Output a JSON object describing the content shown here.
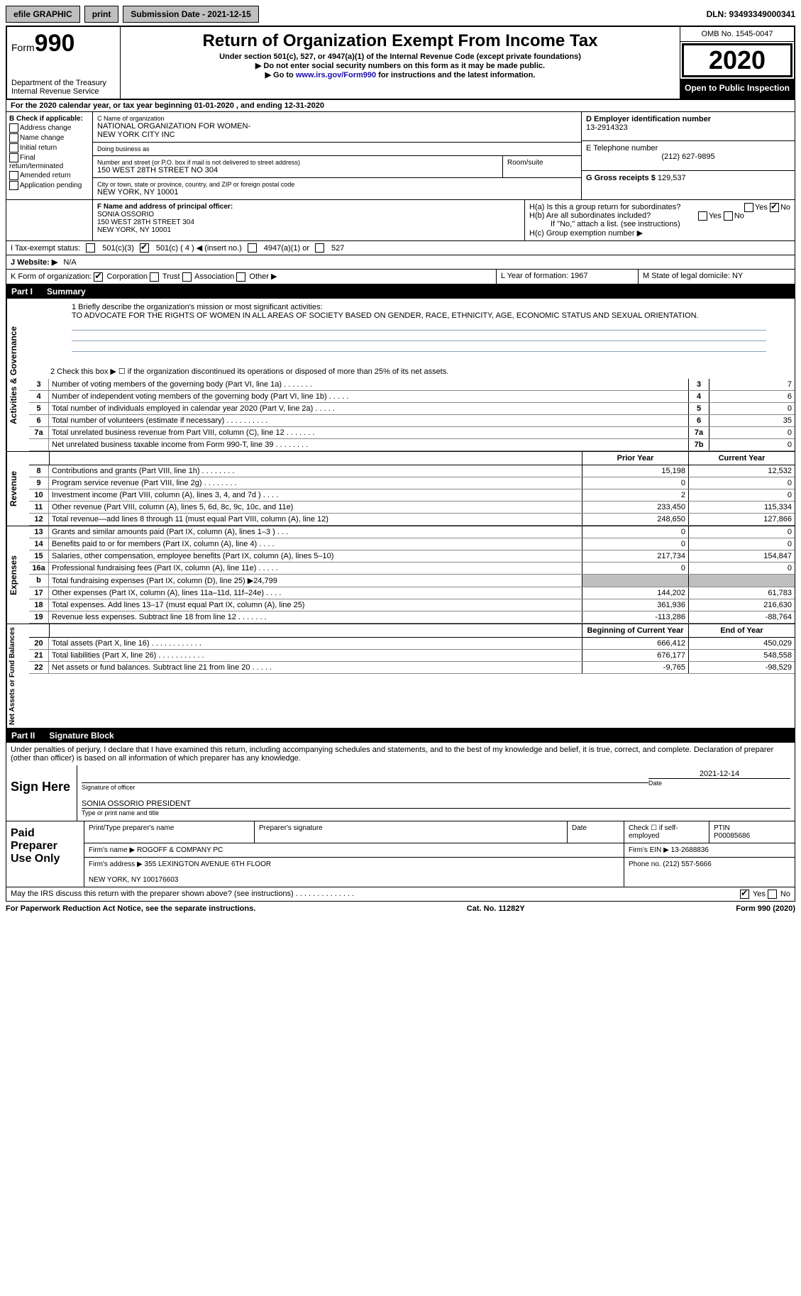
{
  "top": {
    "efile": "efile GRAPHIC",
    "print": "print",
    "submission": "Submission Date - 2021-12-15",
    "dln": "DLN: 93493349000341"
  },
  "header": {
    "form_label": "Form",
    "form_num": "990",
    "title": "Return of Organization Exempt From Income Tax",
    "subtitle": "Under section 501(c), 527, or 4947(a)(1) of the Internal Revenue Code (except private foundations)",
    "note1": "Do not enter social security numbers on this form as it may be made public.",
    "note2_pre": "Go to ",
    "note2_link": "www.irs.gov/Form990",
    "note2_post": " for instructions and the latest information.",
    "dept": "Department of the Treasury\nInternal Revenue Service",
    "omb": "OMB No. 1545-0047",
    "year": "2020",
    "open": "Open to Public Inspection"
  },
  "period": "For the 2020 calendar year, or tax year beginning 01-01-2020   , and ending 12-31-2020",
  "boxB": {
    "label": "B Check if applicable:",
    "items": [
      "Address change",
      "Name change",
      "Initial return",
      "Final return/terminated",
      "Amended return",
      "Application pending"
    ]
  },
  "boxC": {
    "name_lbl": "C Name of organization",
    "name": "NATIONAL ORGANIZATION FOR WOMEN-\nNEW YORK CITY INC",
    "dba_lbl": "Doing business as",
    "addr_lbl": "Number and street (or P.O. box if mail is not delivered to street address)",
    "room_lbl": "Room/suite",
    "addr": "150 WEST 28TH STREET NO 304",
    "city_lbl": "City or town, state or province, country, and ZIP or foreign postal code",
    "city": "NEW YORK, NY  10001"
  },
  "boxD": {
    "ein_lbl": "D Employer identification number",
    "ein": "13-2914323",
    "phone_lbl": "E Telephone number",
    "phone": "(212) 627-9895",
    "gross_lbl": "G Gross receipts $",
    "gross": "129,537"
  },
  "boxF": {
    "lbl": "F Name and address of principal officer:",
    "name": "SONIA OSSORIO\n150 WEST 28TH STREET 304\nNEW YORK, NY  10001"
  },
  "boxH": {
    "a": "H(a)  Is this a group return for subordinates?",
    "b": "H(b)  Are all subordinates included?",
    "b_note": "If \"No,\" attach a list. (see instructions)",
    "c": "H(c)  Group exemption number ▶"
  },
  "boxI": {
    "lbl": "I   Tax-exempt status:",
    "c4": "501(c) ( 4 ) ◀ (insert no.)"
  },
  "boxJ": {
    "lbl": "J   Website: ▶",
    "val": "N/A"
  },
  "boxK": {
    "lbl": "K Form of organization:"
  },
  "boxL": {
    "lbl": "L Year of formation:",
    "val": "1967"
  },
  "boxM": {
    "lbl": "M State of legal domicile:",
    "val": "NY"
  },
  "part1": {
    "title": "Part I",
    "name": "Summary",
    "line1_lbl": "1  Briefly describe the organization's mission or most significant activities:",
    "mission": "TO ADVOCATE FOR THE RIGHTS OF WOMEN IN ALL AREAS OF SOCIETY BASED ON GENDER, RACE, ETHNICITY, AGE, ECONOMIC STATUS AND SEXUAL ORIENTATION.",
    "line2": "2   Check this box ▶ ☐  if the organization discontinued its operations or disposed of more than 25% of its net assets."
  },
  "gov_section": "Activities & Governance",
  "gov_rows": [
    {
      "n": "3",
      "t": "Number of voting members of the governing body (Part VI, line 1a)  .    .    .    .    .    .    .",
      "box": "3",
      "v": "7"
    },
    {
      "n": "4",
      "t": "Number of independent voting members of the governing body (Part VI, line 1b)   .    .    .    .    .",
      "box": "4",
      "v": "6"
    },
    {
      "n": "5",
      "t": "Total number of individuals employed in calendar year 2020 (Part V, line 2a)   .    .    .    .    .",
      "box": "5",
      "v": "0"
    },
    {
      "n": "6",
      "t": "Total number of volunteers (estimate if necessary)   .    .    .    .    .    .    .    .    .    .",
      "box": "6",
      "v": "35"
    },
    {
      "n": "7a",
      "t": "Total unrelated business revenue from Part VIII, column (C), line 12   .    .    .    .    .    .    .",
      "box": "7a",
      "v": "0"
    },
    {
      "n": "",
      "t": "Net unrelated business taxable income from Form 990-T, line 39   .    .    .    .    .    .    .    .",
      "box": "7b",
      "v": "0"
    }
  ],
  "hdr_prior": "Prior Year",
  "hdr_current": "Current Year",
  "rev_section": "Revenue",
  "rev_rows": [
    {
      "n": "8",
      "t": "Contributions and grants (Part VIII, line 1h)   .    .    .    .    .    .    .    .",
      "p": "15,198",
      "c": "12,532"
    },
    {
      "n": "9",
      "t": "Program service revenue (Part VIII, line 2g)   .    .    .    .    .    .    .    .",
      "p": "0",
      "c": "0"
    },
    {
      "n": "10",
      "t": "Investment income (Part VIII, column (A), lines 3, 4, and 7d )   .    .    .    .",
      "p": "2",
      "c": "0"
    },
    {
      "n": "11",
      "t": "Other revenue (Part VIII, column (A), lines 5, 6d, 8c, 9c, 10c, and 11e)",
      "p": "233,450",
      "c": "115,334"
    },
    {
      "n": "12",
      "t": "Total revenue—add lines 8 through 11 (must equal Part VIII, column (A), line 12)",
      "p": "248,650",
      "c": "127,866"
    }
  ],
  "exp_section": "Expenses",
  "exp_rows": [
    {
      "n": "13",
      "t": "Grants and similar amounts paid (Part IX, column (A), lines 1–3 )   .    .    .",
      "p": "0",
      "c": "0"
    },
    {
      "n": "14",
      "t": "Benefits paid to or for members (Part IX, column (A), line 4)   .    .    .    .",
      "p": "0",
      "c": "0"
    },
    {
      "n": "15",
      "t": "Salaries, other compensation, employee benefits (Part IX, column (A), lines 5–10)",
      "p": "217,734",
      "c": "154,847"
    },
    {
      "n": "16a",
      "t": "Professional fundraising fees (Part IX, column (A), line 11e)   .    .    .    .    .",
      "p": "0",
      "c": "0"
    },
    {
      "n": "b",
      "t": "Total fundraising expenses (Part IX, column (D), line 25) ▶24,799",
      "p": "",
      "c": "",
      "grey": true
    },
    {
      "n": "17",
      "t": "Other expenses (Part IX, column (A), lines 11a–11d, 11f–24e)   .    .    .    .",
      "p": "144,202",
      "c": "61,783"
    },
    {
      "n": "18",
      "t": "Total expenses. Add lines 13–17 (must equal Part IX, column (A), line 25)",
      "p": "361,936",
      "c": "216,630"
    },
    {
      "n": "19",
      "t": "Revenue less expenses. Subtract line 18 from line 12   .    .    .    .    .    .    .",
      "p": "-113,286",
      "c": "-88,764"
    }
  ],
  "na_section": "Net Assets or Fund Balances",
  "hdr_begin": "Beginning of Current Year",
  "hdr_end": "End of Year",
  "na_rows": [
    {
      "n": "20",
      "t": "Total assets (Part X, line 16)   .    .    .    .    .    .    .    .    .    .    .    .",
      "p": "666,412",
      "c": "450,029"
    },
    {
      "n": "21",
      "t": "Total liabilities (Part X, line 26)   .    .    .    .    .    .    .    .    .    .    .",
      "p": "676,177",
      "c": "548,558"
    },
    {
      "n": "22",
      "t": "Net assets or fund balances. Subtract line 21 from line 20   .    .    .    .    .",
      "p": "-9,765",
      "c": "-98,529"
    }
  ],
  "part2": {
    "title": "Part II",
    "name": "Signature Block",
    "decl": "Under penalties of perjury, I declare that I have examined this return, including accompanying schedules and statements, and to the best of my knowledge and belief, it is true, correct, and complete. Declaration of preparer (other than officer) is based on all information of which preparer has any knowledge."
  },
  "sign": {
    "lbl": "Sign Here",
    "sig_lbl": "Signature of officer",
    "date_lbl": "Date",
    "date": "2021-12-14",
    "name": "SONIA OSSORIO  PRESIDENT",
    "name_lbl": "Type or print name and title"
  },
  "prep": {
    "lbl": "Paid Preparer Use Only",
    "h1": "Print/Type preparer's name",
    "h2": "Preparer's signature",
    "h3": "Date",
    "h4": "Check ☐ if self-employed",
    "h5": "PTIN",
    "ptin": "P00085686",
    "firm_lbl": "Firm's name     ▶",
    "firm": "ROGOFF & COMPANY PC",
    "ein_lbl": "Firm's EIN ▶",
    "ein": "13-2688836",
    "addr_lbl": "Firm's address ▶",
    "addr": "355 LEXINGTON AVENUE 6TH FLOOR\n\nNEW YORK, NY  100176603",
    "phone_lbl": "Phone no.",
    "phone": "(212) 557-5666"
  },
  "discuss": "May the IRS discuss this return with the preparer shown above? (see instructions)   .    .    .    .    .    .    .    .    .    .    .    .    .    .",
  "footer": {
    "pra": "For Paperwork Reduction Act Notice, see the separate instructions.",
    "cat": "Cat. No. 11282Y",
    "form": "Form 990 (2020)"
  }
}
